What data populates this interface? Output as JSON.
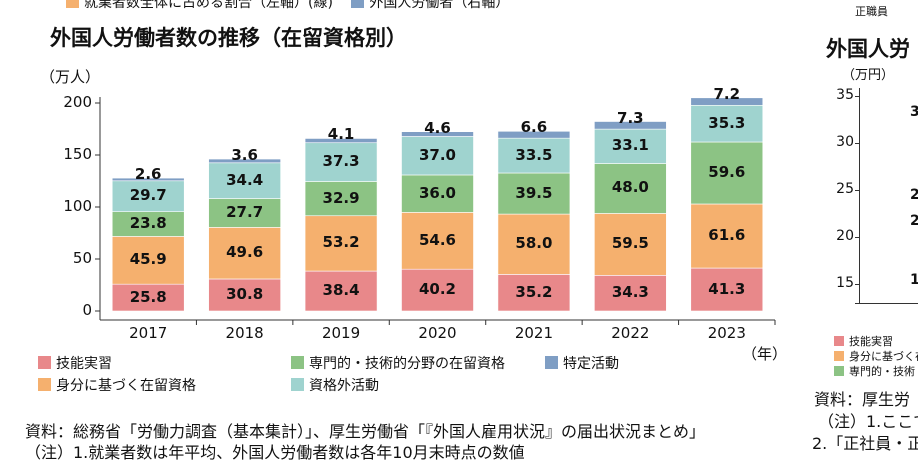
{
  "top_legend": [
    {
      "label": "就業者数全体に占める割合（左軸）(線)",
      "color": "#f5b06e"
    },
    {
      "label": "外国人労働者（右軸）",
      "color": "#7f9ec4"
    }
  ],
  "right_top_text": "正職員",
  "chart_data": {
    "type": "bar",
    "stacked": true,
    "title": "外国人労働者数の推移（在留資格別）",
    "ylabel": "（万人）",
    "xlabel": "（年）",
    "ylim": [
      0,
      200
    ],
    "yticks": [
      0,
      50,
      100,
      150,
      200
    ],
    "categories": [
      "2017",
      "2018",
      "2019",
      "2020",
      "2021",
      "2022",
      "2023"
    ],
    "legend_position": "bottom",
    "series": [
      {
        "name": "技能実習",
        "color": "#e8888a",
        "values": [
          25.8,
          30.8,
          38.4,
          40.2,
          35.2,
          34.3,
          41.3
        ]
      },
      {
        "name": "身分に基づく在留資格",
        "color": "#f5b06e",
        "values": [
          45.9,
          49.6,
          53.2,
          54.6,
          58.0,
          59.5,
          61.6
        ]
      },
      {
        "name": "専門的・技術的分野の在留資格",
        "color": "#8cc384",
        "values": [
          23.8,
          27.7,
          32.9,
          36.0,
          39.5,
          48.0,
          59.6
        ]
      },
      {
        "name": "資格外活動",
        "color": "#9fd3cf",
        "values": [
          29.7,
          34.4,
          37.3,
          37.0,
          33.5,
          33.1,
          35.3
        ]
      },
      {
        "name": "特定活動",
        "color": "#7f9ec4",
        "values": [
          2.6,
          3.6,
          4.1,
          4.6,
          6.6,
          7.3,
          7.2
        ]
      }
    ]
  },
  "source": "資料：総務省「労働力調査（基本集計）」、厚生労働省「『外国人雇用状況』の届出状況まとめ」",
  "note": "（注）1.就業者数は年平均、外国人労働者数は各年10月末時点の数値",
  "right_panel": {
    "title": "外国人労",
    "ylabel": "（万円）",
    "yticks": [
      "35",
      "30",
      "25",
      "20",
      "15"
    ],
    "partial_labels": [
      "3",
      "2",
      "2",
      "1"
    ],
    "legend": [
      {
        "label": "技能実習",
        "color": "#e8888a"
      },
      {
        "label": "身分に基づく在",
        "color": "#f5b06e"
      },
      {
        "label": "専門的・技術",
        "color": "#8cc384"
      }
    ],
    "source": "資料：厚生労",
    "note1": "（注）1.ここで",
    "note2": "2.「正社員・正"
  }
}
